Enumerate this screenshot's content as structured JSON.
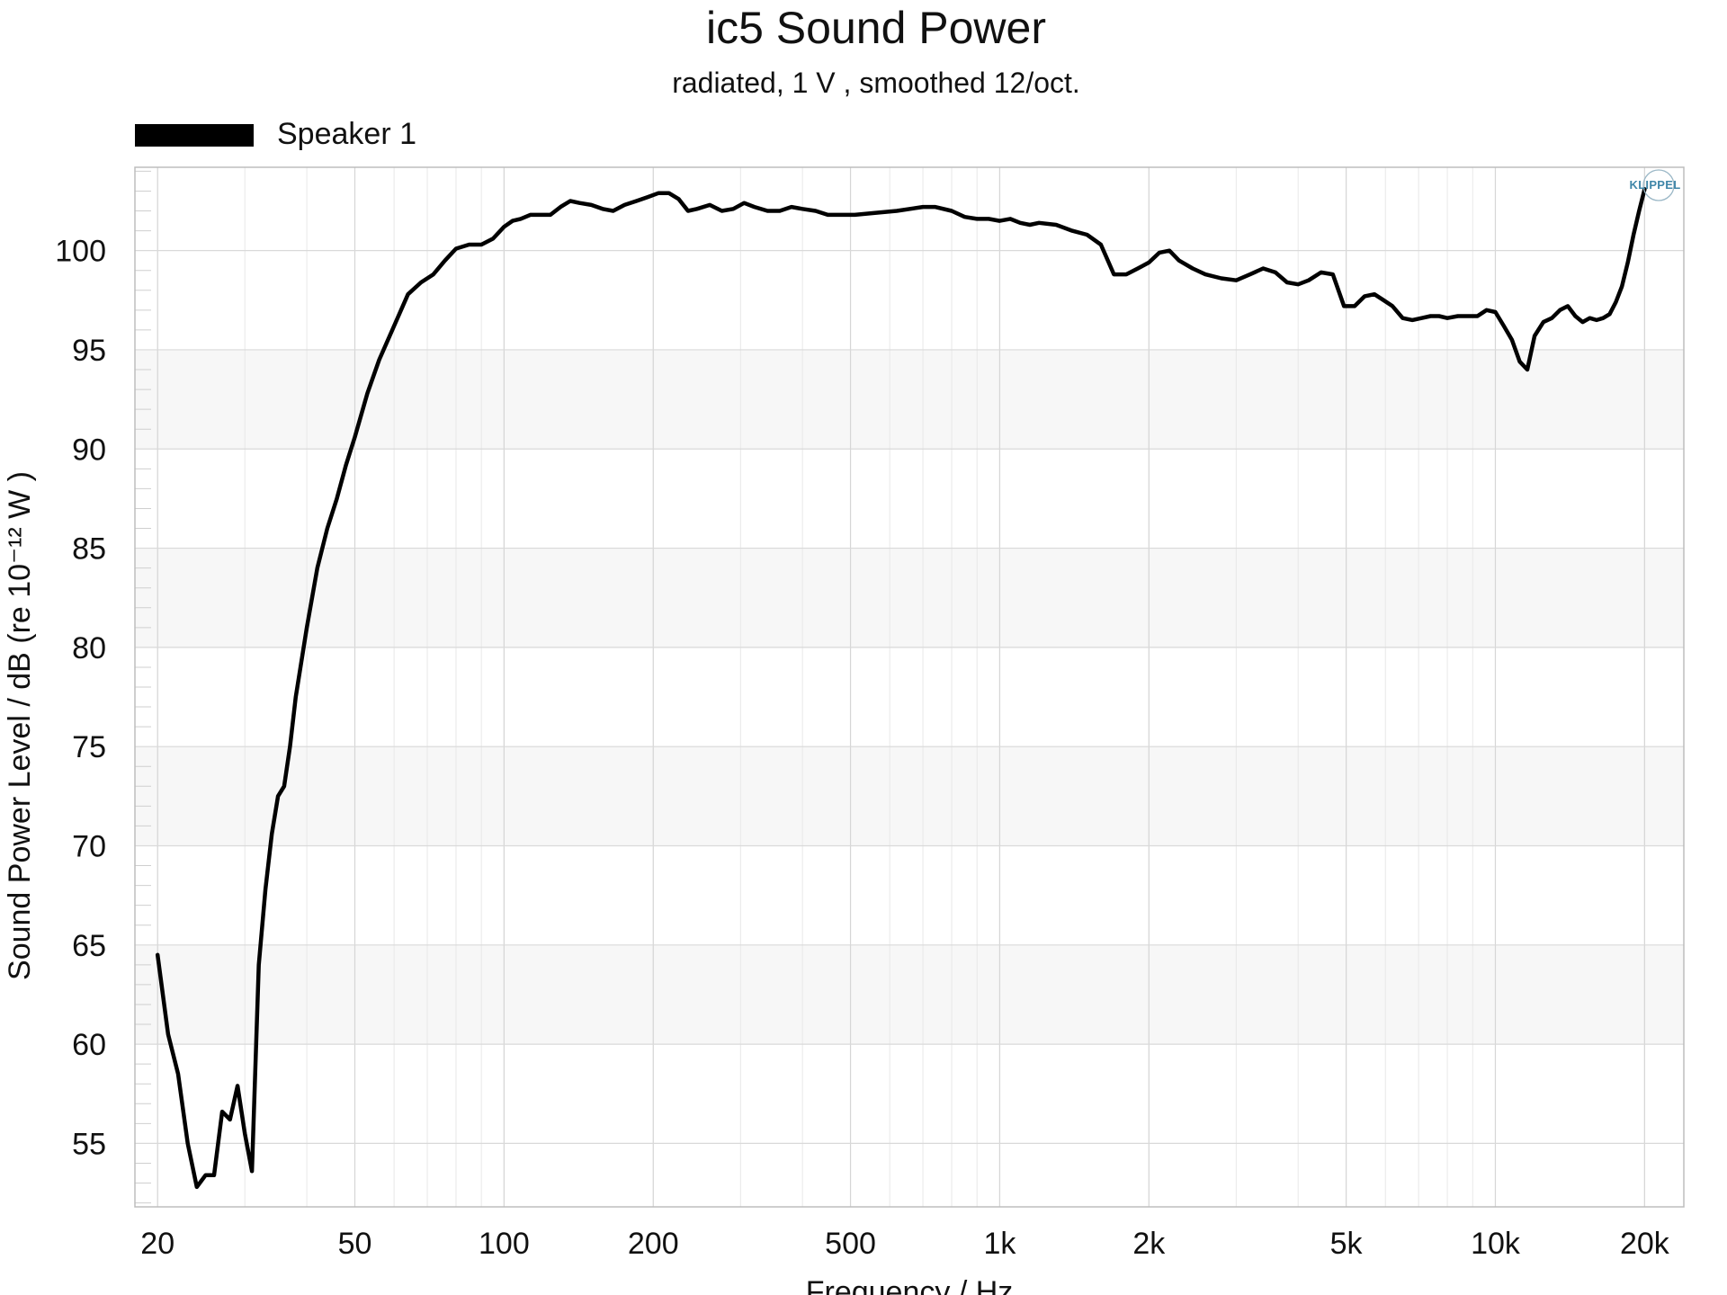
{
  "chart_data": {
    "type": "line",
    "title": "ic5 Sound Power",
    "subtitle": "radiated, 1 V , smoothed 12/oct.",
    "xlabel": "Frequency / Hz",
    "ylabel": "Sound Power Level / dB (re 10⁻¹² W )",
    "x_scale": "log",
    "xlim": [
      18,
      24000
    ],
    "ylim": [
      51.8,
      104.2
    ],
    "grid": true,
    "legend_position": "top-left",
    "x_ticks": [
      {
        "value": 20,
        "label": "20"
      },
      {
        "value": 50,
        "label": "50"
      },
      {
        "value": 100,
        "label": "100"
      },
      {
        "value": 200,
        "label": "200"
      },
      {
        "value": 500,
        "label": "500"
      },
      {
        "value": 1000,
        "label": "1k"
      },
      {
        "value": 2000,
        "label": "2k"
      },
      {
        "value": 5000,
        "label": "5k"
      },
      {
        "value": 10000,
        "label": "10k"
      },
      {
        "value": 20000,
        "label": "20k"
      }
    ],
    "y_ticks": [
      55,
      60,
      65,
      70,
      75,
      80,
      85,
      90,
      95,
      100
    ],
    "series": [
      {
        "name": "Speaker 1",
        "color": "#000000",
        "x": [
          20,
          21,
          22,
          23,
          24,
          25,
          26,
          27,
          28,
          29,
          30,
          31,
          32,
          33,
          34,
          35,
          36,
          37,
          38,
          40,
          42,
          44,
          46,
          48,
          50,
          53,
          56,
          60,
          64,
          68,
          72,
          76,
          80,
          85,
          90,
          95,
          100,
          104,
          108,
          113,
          118,
          124,
          130,
          136,
          142,
          150,
          158,
          166,
          175,
          185,
          195,
          205,
          215,
          225,
          235,
          245,
          260,
          275,
          290,
          305,
          320,
          340,
          360,
          380,
          400,
          425,
          450,
          480,
          510,
          560,
          620,
          700,
          740,
          800,
          850,
          900,
          950,
          1000,
          1050,
          1100,
          1150,
          1200,
          1300,
          1400,
          1500,
          1600,
          1700,
          1800,
          1900,
          2000,
          2100,
          2200,
          2300,
          2450,
          2600,
          2800,
          3000,
          3200,
          3400,
          3600,
          3800,
          4000,
          4200,
          4450,
          4700,
          4950,
          5200,
          5450,
          5700,
          5950,
          6200,
          6500,
          6800,
          7100,
          7400,
          7700,
          8000,
          8400,
          8800,
          9200,
          9600,
          10000,
          10400,
          10800,
          11200,
          11600,
          12000,
          12500,
          13000,
          13500,
          14000,
          14500,
          15000,
          15500,
          16000,
          16500,
          17000,
          17500,
          18000,
          18500,
          19000,
          19500,
          20000
        ],
        "values": [
          64.5,
          60.5,
          58.5,
          55.0,
          52.8,
          53.4,
          53.4,
          56.6,
          56.2,
          57.9,
          55.5,
          53.6,
          64.0,
          67.8,
          70.6,
          72.5,
          73.0,
          75.0,
          77.5,
          81.0,
          84.0,
          86.0,
          87.5,
          89.2,
          90.6,
          92.8,
          94.5,
          96.2,
          97.8,
          98.4,
          98.8,
          99.5,
          100.1,
          100.3,
          100.3,
          100.6,
          101.2,
          101.5,
          101.6,
          101.8,
          101.8,
          101.8,
          102.2,
          102.5,
          102.4,
          102.3,
          102.1,
          102.0,
          102.3,
          102.5,
          102.7,
          102.9,
          102.9,
          102.6,
          102.0,
          102.1,
          102.3,
          102.0,
          102.1,
          102.4,
          102.2,
          102.0,
          102.0,
          102.2,
          102.1,
          102.0,
          101.8,
          101.8,
          101.8,
          101.9,
          102.0,
          102.2,
          102.2,
          102.0,
          101.7,
          101.6,
          101.6,
          101.5,
          101.6,
          101.4,
          101.3,
          101.4,
          101.3,
          101.0,
          100.8,
          100.3,
          98.8,
          98.8,
          99.1,
          99.4,
          99.9,
          100.0,
          99.5,
          99.1,
          98.8,
          98.6,
          98.5,
          98.8,
          99.1,
          98.9,
          98.4,
          98.3,
          98.5,
          98.9,
          98.8,
          97.2,
          97.2,
          97.7,
          97.8,
          97.5,
          97.2,
          96.6,
          96.5,
          96.6,
          96.7,
          96.7,
          96.6,
          96.7,
          96.7,
          96.7,
          97.0,
          96.9,
          96.2,
          95.5,
          94.4,
          94.0,
          95.7,
          96.4,
          96.6,
          97.0,
          97.2,
          96.7,
          96.4,
          96.6,
          96.5,
          96.6,
          96.8,
          97.4,
          98.2,
          99.4,
          100.8,
          102.0,
          103.1
        ]
      }
    ]
  },
  "legend": {
    "items": [
      {
        "label": "Speaker 1",
        "color": "#000000"
      }
    ]
  },
  "logo": {
    "text": "KLIPPEL"
  }
}
